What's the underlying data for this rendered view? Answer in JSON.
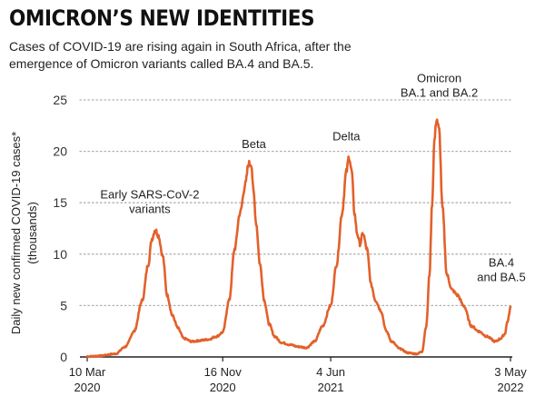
{
  "title": "OMICRON’S NEW IDENTITIES",
  "subtitle": "Cases of COVID-19 are rising again in South Africa, after the emergence of Omicron variants called BA.4 and BA.5.",
  "colors": {
    "line": "#e2612b",
    "grid": "#b0b0b0",
    "axis": "#222222"
  },
  "chart_data": {
    "type": "line",
    "title": "OMICRON’S NEW IDENTITIES",
    "subtitle": "Cases of COVID-19 are rising again in South Africa, after the emergence of Omicron variants called BA.4 and BA.5.",
    "ylabel": "Daily new confirmed COVID-19 cases* (thousands)",
    "ylabel_lines": [
      "Daily new confirmed COVID-19 cases*",
      "(thousands)"
    ],
    "xlabel": "",
    "ylim": [
      0,
      25
    ],
    "yticks": [
      0,
      5,
      10,
      15,
      20,
      25
    ],
    "xlim": [
      "2020-03-10",
      "2022-05-03"
    ],
    "xticks": [
      {
        "date": "2020-03-10",
        "label": [
          "10 Mar",
          "2020"
        ]
      },
      {
        "date": "2020-11-16",
        "label": [
          "16 Nov",
          "2020"
        ]
      },
      {
        "date": "2021-06-04",
        "label": [
          "4 Jun",
          "2021"
        ]
      },
      {
        "date": "2022-05-03",
        "label": [
          "3 May",
          "2022"
        ]
      }
    ],
    "grid": "horizontal dotted",
    "series": [
      {
        "x": [
          "2020-03-10",
          "2020-04-01",
          "2020-05-01",
          "2020-05-20",
          "2020-06-05",
          "2020-06-20",
          "2020-07-01",
          "2020-07-08",
          "2020-07-14",
          "2020-07-20",
          "2020-07-28",
          "2020-08-05",
          "2020-08-15",
          "2020-08-25",
          "2020-09-05",
          "2020-09-20",
          "2020-10-05",
          "2020-10-20",
          "2020-11-05",
          "2020-11-16",
          "2020-11-28",
          "2020-12-08",
          "2020-12-18",
          "2020-12-28",
          "2021-01-03",
          "2021-01-08",
          "2021-01-12",
          "2021-01-17",
          "2021-01-24",
          "2021-02-01",
          "2021-02-10",
          "2021-02-20",
          "2021-03-05",
          "2021-03-20",
          "2021-04-05",
          "2021-04-20",
          "2021-05-05",
          "2021-05-20",
          "2021-06-04",
          "2021-06-15",
          "2021-06-25",
          "2021-07-03",
          "2021-07-08",
          "2021-07-13",
          "2021-07-18",
          "2021-07-23",
          "2021-07-28",
          "2021-08-03",
          "2021-08-10",
          "2021-08-18",
          "2021-08-26",
          "2021-09-05",
          "2021-09-15",
          "2021-09-25",
          "2021-10-10",
          "2021-10-25",
          "2021-11-10",
          "2021-11-20",
          "2021-11-28",
          "2021-12-04",
          "2021-12-09",
          "2021-12-13",
          "2021-12-17",
          "2021-12-22",
          "2021-12-28",
          "2022-01-05",
          "2022-01-15",
          "2022-01-25",
          "2022-02-05",
          "2022-02-20",
          "2022-03-05",
          "2022-03-20",
          "2022-04-05",
          "2022-04-15",
          "2022-04-22",
          "2022-04-28",
          "2022-05-03"
        ],
        "y": [
          0.05,
          0.1,
          0.3,
          1.0,
          2.5,
          5.5,
          9.0,
          11.5,
          12.4,
          11.8,
          9.8,
          6.0,
          4.0,
          2.8,
          1.8,
          1.5,
          1.6,
          1.7,
          2.0,
          2.4,
          5.5,
          10.5,
          14.0,
          16.8,
          18.8,
          18.8,
          16.0,
          13.0,
          9.0,
          5.5,
          3.2,
          2.0,
          1.4,
          1.2,
          1.0,
          0.9,
          1.5,
          3.0,
          5.0,
          9.0,
          14.0,
          18.0,
          19.5,
          18.0,
          14.0,
          12.0,
          11.0,
          12.0,
          10.5,
          7.0,
          5.5,
          4.5,
          2.5,
          1.5,
          0.8,
          0.4,
          0.3,
          0.5,
          3.0,
          8.0,
          15.0,
          21.0,
          23.2,
          22.0,
          14.5,
          8.0,
          6.5,
          6.0,
          5.0,
          3.0,
          2.5,
          2.0,
          1.5,
          1.8,
          2.2,
          3.5,
          4.8
        ]
      }
    ],
    "annotations": [
      {
        "text": [
          "Early SARS-CoV-2",
          "variants"
        ],
        "date": "2020-07-14",
        "value": 12.4
      },
      {
        "text": [
          "Beta"
        ],
        "date": "2021-01-06",
        "value": 19.0
      },
      {
        "text": [
          "Delta"
        ],
        "date": "2021-07-08",
        "value": 19.5
      },
      {
        "text": [
          "Omicron",
          "BA.1 and BA.2"
        ],
        "date": "2021-12-17",
        "value": 23.2
      },
      {
        "text": [
          "BA.4",
          "and BA.5"
        ],
        "date": "2022-05-03",
        "value": 4.8
      }
    ]
  }
}
